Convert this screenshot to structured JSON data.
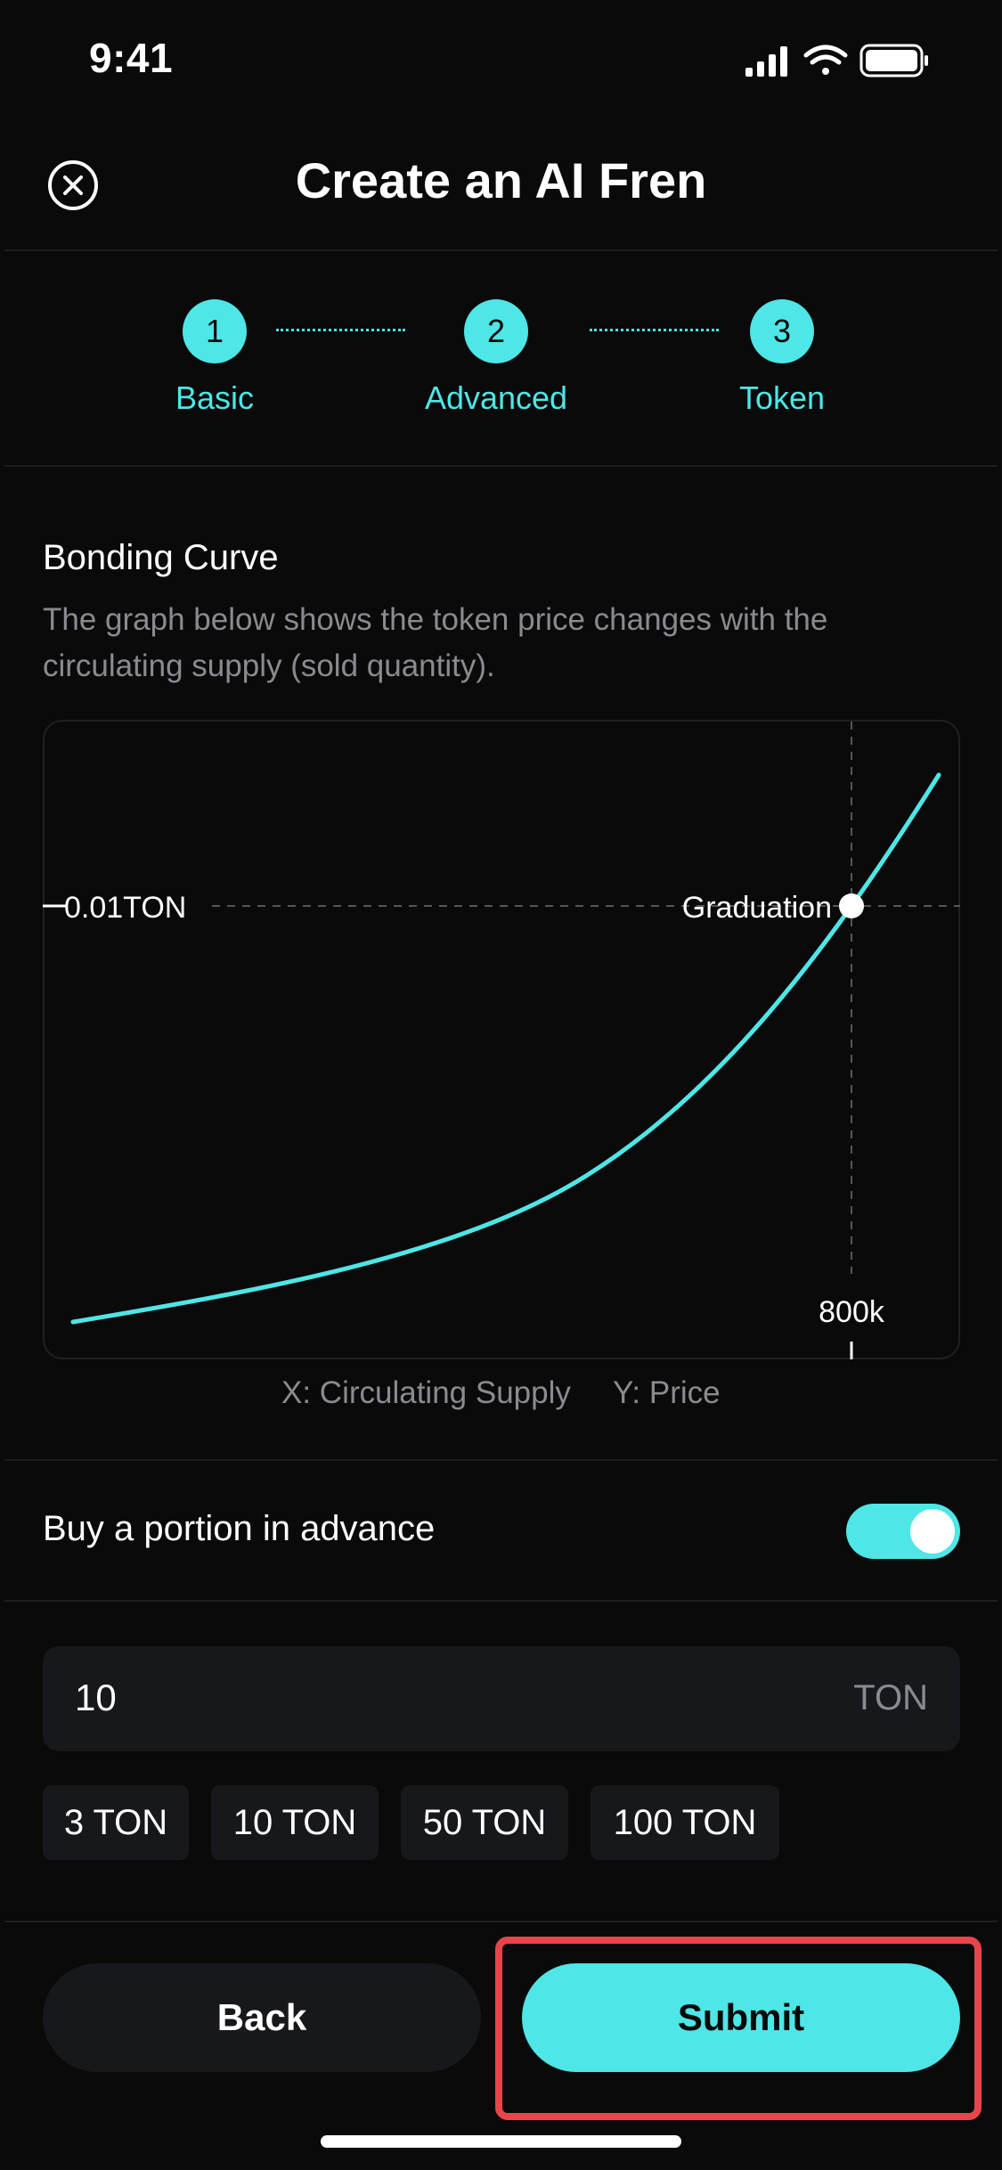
{
  "status_bar": {
    "time": "9:41"
  },
  "header": {
    "title": "Create an AI Fren",
    "close_icon": "close-circle-icon"
  },
  "stepper": {
    "steps": [
      {
        "number": "1",
        "label": "Basic"
      },
      {
        "number": "2",
        "label": "Advanced"
      },
      {
        "number": "3",
        "label": "Token"
      }
    ],
    "accent_color": "#4ee6e6"
  },
  "bonding_curve": {
    "title": "Bonding Curve",
    "description": "The graph below shows the token price changes with the circulating supply (sold quantity).",
    "x_note": "X: Circulating Supply",
    "y_note": "Y: Price"
  },
  "chart_data": {
    "type": "line",
    "y_marker_label": "0.01TON",
    "x_marker_label": "800k",
    "point_label": "Graduation",
    "series_color": "#4ee6e6",
    "grid": false
  },
  "advance_buy": {
    "label": "Buy a portion in advance",
    "toggle_on": true,
    "amount_value": "10",
    "amount_unit": "TON",
    "presets": [
      "3 TON",
      "10 TON",
      "50 TON",
      "100 TON"
    ]
  },
  "footer": {
    "back_label": "Back",
    "submit_label": "Submit",
    "highlight_color": "#e8454a"
  }
}
